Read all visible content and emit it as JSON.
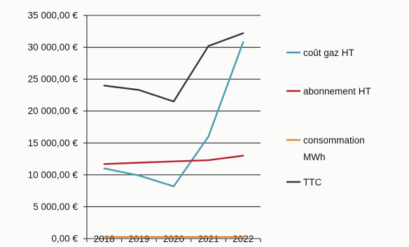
{
  "chart_data": {
    "type": "line",
    "categories": [
      "2018",
      "2019",
      "2020",
      "2021",
      "2022"
    ],
    "y_tick_labels": [
      "0,00 €",
      "5 000,00 €",
      "10 000,00 €",
      "15 000,00 €",
      "20 000,00 €",
      "25 000,00 €",
      "30 000,00 €",
      "35 000,00 €"
    ],
    "y_ticks": [
      0,
      5000,
      10000,
      15000,
      20000,
      25000,
      30000,
      35000
    ],
    "ylim": [
      0,
      35000
    ],
    "grid": "horizontal",
    "legend_position": "right",
    "series": [
      {
        "name": "coût gaz HT",
        "color": "#4a9ab0",
        "values": [
          11000,
          9900,
          8200,
          16000,
          30800
        ]
      },
      {
        "name": "abonnement HT",
        "color": "#b8232f",
        "values": [
          11700,
          11900,
          12100,
          12300,
          13000
        ]
      },
      {
        "name": "consommation MWh",
        "color": "#e8862a",
        "values": [
          250,
          250,
          250,
          250,
          250
        ]
      },
      {
        "name": "TTC",
        "color": "#2e3a40",
        "values": [
          24000,
          23300,
          21500,
          30200,
          32200
        ]
      }
    ]
  },
  "legend": {
    "items": [
      {
        "label_lines": [
          "coût gaz HT"
        ]
      },
      {
        "label_lines": [
          "abonnement HT"
        ]
      },
      {
        "label_lines": [
          "consommation",
          "MWh"
        ]
      },
      {
        "label_lines": [
          "TTC"
        ]
      }
    ]
  }
}
